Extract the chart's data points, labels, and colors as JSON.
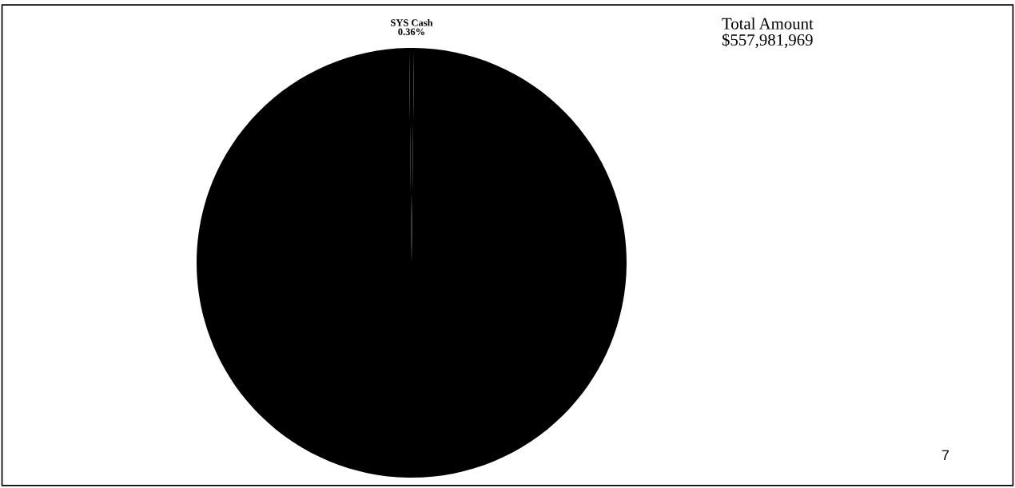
{
  "chart_data": {
    "type": "pie",
    "categories": [
      "SYS Cash",
      null
    ],
    "values": [
      0.36,
      99.64
    ],
    "value_labels": [
      "0.36%",
      null
    ],
    "colors": [
      "#000000",
      "#000000"
    ],
    "annotations": [
      "Total Amount\n$557,981,969",
      "7"
    ]
  }
}
